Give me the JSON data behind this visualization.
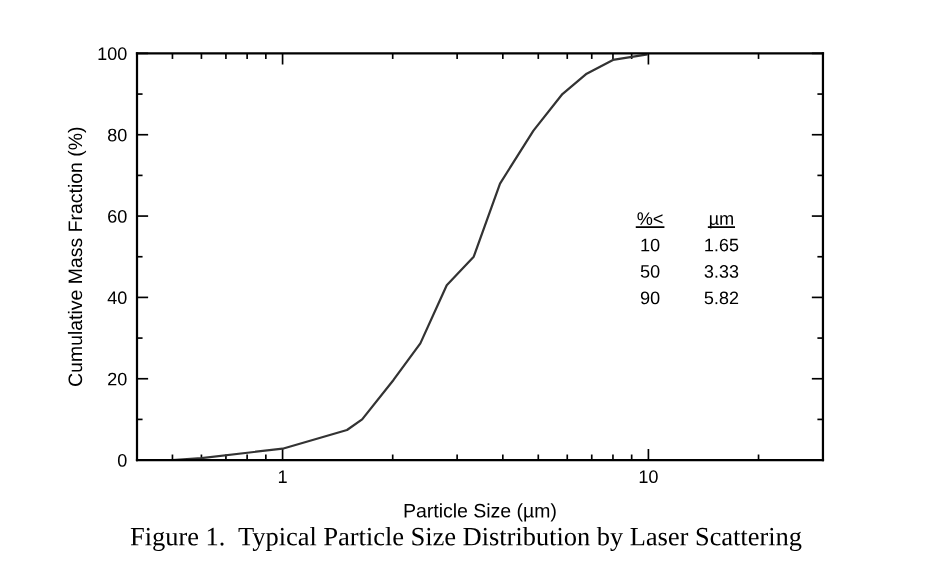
{
  "chart_data": {
    "type": "line",
    "xlabel": "Particle Size (µm)",
    "ylabel": "Cumulative Mass Fraction (%)",
    "x": [
      0.5,
      0.6,
      1,
      1.5,
      1.65,
      2.01,
      2.38,
      2.81,
      3.33,
      3.93,
      4.85,
      5.82,
      6.78,
      8.0,
      9.88
    ],
    "series": [
      {
        "color": "#333333",
        "values": [
          0,
          0.5,
          2.8,
          7.4,
          10,
          19.7,
          28.7,
          43,
          50,
          68,
          81,
          90,
          95,
          98.4,
          99.7
        ]
      }
    ],
    "log": "x",
    "xlim": [
      0.4,
      30
    ],
    "xticks": [
      1,
      10
    ],
    "ylim": [
      0,
      100
    ],
    "yticks": [
      0,
      20,
      40,
      60,
      80,
      100
    ],
    "grid": false,
    "legend": false,
    "marker": "none",
    "line_style": "solid",
    "annotations": [
      "%<",
      "µm",
      "10",
      "1.65",
      "50",
      "3.33",
      "90",
      "5.82",
      "Figure 1.  Typical Particle Size Distribution by Laser Scattering"
    ]
  }
}
